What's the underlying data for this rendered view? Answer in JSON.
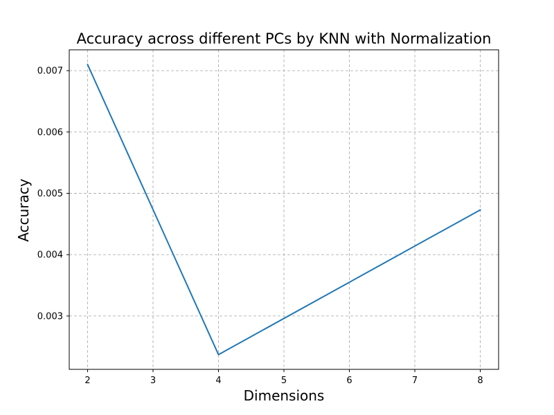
{
  "chart_data": {
    "type": "line",
    "title": "Accuracy across different PCs by KNN with Normalization",
    "xlabel": "Dimensions",
    "ylabel": "Accuracy",
    "x": [
      2,
      4,
      8
    ],
    "series": [
      {
        "values": [
          0.0071,
          0.00237,
          0.00473
        ],
        "color": "#1f77b4"
      }
    ],
    "xlim": [
      1.72,
      8.28
    ],
    "ylim": [
      0.00213,
      0.00734
    ],
    "x_ticks": [
      2,
      3,
      4,
      5,
      6,
      7,
      8
    ],
    "x_tick_labels": [
      "2",
      "3",
      "4",
      "5",
      "6",
      "7",
      "8"
    ],
    "y_ticks": [
      0.003,
      0.004,
      0.005,
      0.006,
      0.007
    ],
    "y_tick_labels": [
      "0.003",
      "0.004",
      "0.005",
      "0.006",
      "0.007"
    ],
    "grid": true
  }
}
